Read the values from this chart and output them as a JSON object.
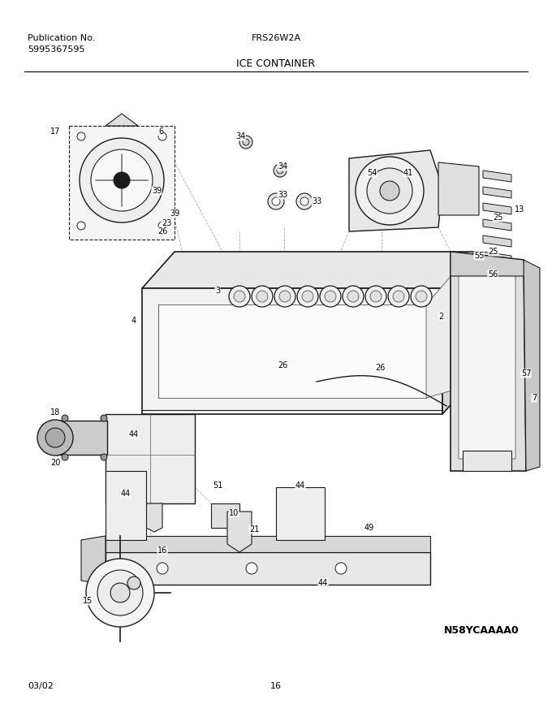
{
  "title_left_line1": "Publication No.",
  "title_left_line2": "5995367595",
  "title_center": "FRS26W2A",
  "subtitle": "ICE CONTAINER",
  "footer_left": "03/02",
  "footer_center": "16",
  "footer_right": "N58YCAAAA0",
  "bg_color": "#ffffff",
  "line_color": "#000000",
  "text_color": "#000000",
  "font_size_header": 8,
  "font_size_subtitle": 9,
  "font_size_footer": 8,
  "font_size_part_labels": 7
}
